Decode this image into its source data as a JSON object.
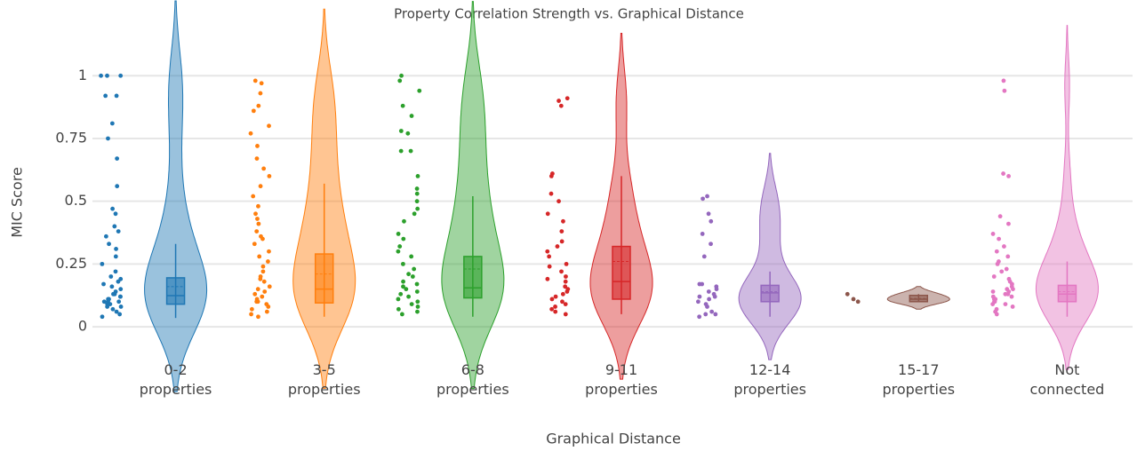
{
  "chart_data": {
    "type": "violin",
    "title": "Property Correlation Strength vs. Graphical Distance",
    "x_label": "Graphical Distance",
    "y_label": "MIC Score",
    "ylim": [
      -0.12,
      1.1
    ],
    "yticks": [
      0,
      0.25,
      0.5,
      0.75,
      1
    ],
    "grid": true,
    "series": [
      {
        "name": "0-2 properties",
        "color": "#1f77b4",
        "points": [
          1,
          1,
          1,
          0.92,
          0.92,
          0.81,
          0.75,
          0.67,
          0.56,
          0.47,
          0.45,
          0.4,
          0.38,
          0.36,
          0.33,
          0.31,
          0.28,
          0.25,
          0.22,
          0.2,
          0.19,
          0.18,
          0.17,
          0.16,
          0.15,
          0.14,
          0.13,
          0.13,
          0.12,
          0.12,
          0.11,
          0.11,
          0.1,
          0.1,
          0.1,
          0.09,
          0.09,
          0.08,
          0.08,
          0.07,
          0.06,
          0.05,
          0.04
        ],
        "box": {
          "lower": 0.035,
          "q1": 0.09,
          "median": 0.124,
          "q3": 0.195,
          "upper": 0.33,
          "mean": 0.16
        }
      },
      {
        "name": "3-5 properties",
        "color": "#ff7f0e",
        "points": [
          0.98,
          0.97,
          0.93,
          0.88,
          0.86,
          0.8,
          0.77,
          0.72,
          0.67,
          0.63,
          0.6,
          0.56,
          0.52,
          0.48,
          0.45,
          0.43,
          0.41,
          0.38,
          0.36,
          0.35,
          0.33,
          0.3,
          0.28,
          0.26,
          0.24,
          0.22,
          0.2,
          0.19,
          0.18,
          0.16,
          0.15,
          0.14,
          0.13,
          0.12,
          0.11,
          0.1,
          0.1,
          0.09,
          0.08,
          0.07,
          0.06,
          0.05,
          0.04
        ],
        "box": {
          "lower": 0.04,
          "q1": 0.095,
          "median": 0.15,
          "q3": 0.29,
          "upper": 0.57,
          "mean": 0.21
        }
      },
      {
        "name": "6-8 properties",
        "color": "#2ca02c",
        "points": [
          1,
          0.98,
          0.94,
          0.88,
          0.84,
          0.78,
          0.77,
          0.7,
          0.7,
          0.6,
          0.55,
          0.53,
          0.5,
          0.47,
          0.45,
          0.42,
          0.37,
          0.35,
          0.32,
          0.3,
          0.28,
          0.25,
          0.23,
          0.21,
          0.2,
          0.18,
          0.17,
          0.16,
          0.15,
          0.14,
          0.13,
          0.12,
          0.11,
          0.1,
          0.09,
          0.08,
          0.07,
          0.06,
          0.05
        ],
        "box": {
          "lower": 0.04,
          "q1": 0.115,
          "median": 0.155,
          "q3": 0.28,
          "upper": 0.52,
          "mean": 0.23
        }
      },
      {
        "name": "9-11 properties",
        "color": "#d62728",
        "points": [
          0.91,
          0.9,
          0.88,
          0.61,
          0.6,
          0.53,
          0.5,
          0.45,
          0.42,
          0.38,
          0.34,
          0.32,
          0.3,
          0.28,
          0.25,
          0.24,
          0.22,
          0.2,
          0.19,
          0.18,
          0.16,
          0.15,
          0.14,
          0.13,
          0.12,
          0.11,
          0.1,
          0.09,
          0.08,
          0.07,
          0.06,
          0.05
        ],
        "box": {
          "lower": 0.05,
          "q1": 0.11,
          "median": 0.18,
          "q3": 0.32,
          "upper": 0.6,
          "mean": 0.26
        }
      },
      {
        "name": "12-14 properties",
        "color": "#9467bd",
        "points": [
          0.52,
          0.51,
          0.45,
          0.42,
          0.37,
          0.33,
          0.28,
          0.17,
          0.17,
          0.16,
          0.15,
          0.14,
          0.13,
          0.12,
          0.12,
          0.11,
          0.1,
          0.09,
          0.08,
          0.06,
          0.05,
          0.05,
          0.04
        ],
        "box": {
          "lower": 0.04,
          "q1": 0.1,
          "median": 0.135,
          "q3": 0.165,
          "upper": 0.22,
          "mean": 0.14
        }
      },
      {
        "name": "15-17 properties",
        "color": "#8c564b",
        "points": [
          0.11,
          0.13,
          0.1
        ],
        "box": {
          "lower": 0.1,
          "q1": 0.1,
          "median": 0.11,
          "q3": 0.125,
          "upper": 0.13,
          "mean": 0.113
        }
      },
      {
        "name": "Not connected",
        "color": "#e377c2",
        "points": [
          0.98,
          0.94,
          0.61,
          0.6,
          0.44,
          0.41,
          0.37,
          0.35,
          0.32,
          0.3,
          0.28,
          0.26,
          0.25,
          0.23,
          0.22,
          0.2,
          0.19,
          0.18,
          0.17,
          0.16,
          0.15,
          0.15,
          0.14,
          0.14,
          0.13,
          0.13,
          0.12,
          0.12,
          0.11,
          0.11,
          0.1,
          0.1,
          0.09,
          0.09,
          0.08,
          0.07,
          0.06,
          0.05
        ],
        "box": {
          "lower": 0.04,
          "q1": 0.1,
          "median": 0.13,
          "q3": 0.165,
          "upper": 0.26,
          "mean": 0.14
        }
      }
    ]
  }
}
